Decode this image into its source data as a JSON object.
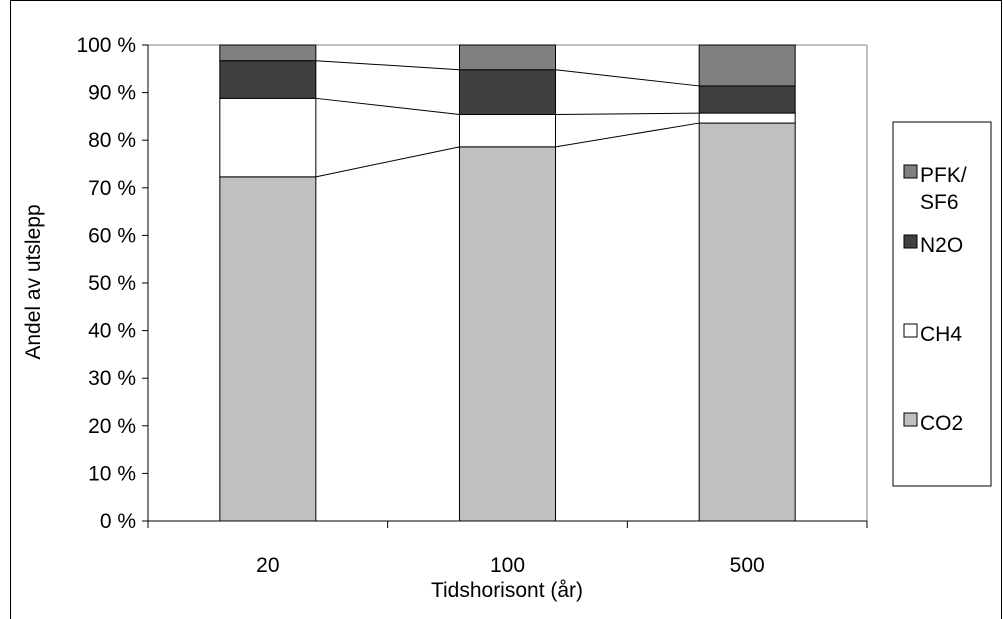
{
  "chart_data": {
    "type": "bar",
    "stacked": true,
    "percent": true,
    "categories": [
      "20",
      "100",
      "500"
    ],
    "xlabel": "Tidshorisont (år)",
    "ylabel": "Andel av utslepp",
    "ylim": [
      0,
      100
    ],
    "yticks": [
      "0 %",
      "10 %",
      "20 %",
      "30 %",
      "40 %",
      "50 %",
      "60 %",
      "70 %",
      "80 %",
      "90 %",
      "100 %"
    ],
    "series_lines": true,
    "series": [
      {
        "name": "CO2",
        "color": "#c0c0c0",
        "values": [
          72.3,
          78.6,
          83.6
        ]
      },
      {
        "name": "CH4",
        "color": "#ffffff",
        "values": [
          16.5,
          6.8,
          2.1
        ]
      },
      {
        "name": "N2O",
        "color": "#404040",
        "values": [
          7.9,
          9.4,
          5.7
        ]
      },
      {
        "name": "PFK/ SF6",
        "color": "#808080",
        "values": [
          3.3,
          5.2,
          8.6
        ]
      }
    ],
    "legend": {
      "position": "right",
      "items": [
        {
          "label_lines": [
            "PFK/",
            "SF6"
          ],
          "color": "#808080"
        },
        {
          "label_lines": [
            "N2O"
          ],
          "color": "#404040"
        },
        {
          "label_lines": [
            "CH4"
          ],
          "color": "#ffffff"
        },
        {
          "label_lines": [
            "CO2"
          ],
          "color": "#c0c0c0"
        }
      ]
    },
    "grid": false
  }
}
